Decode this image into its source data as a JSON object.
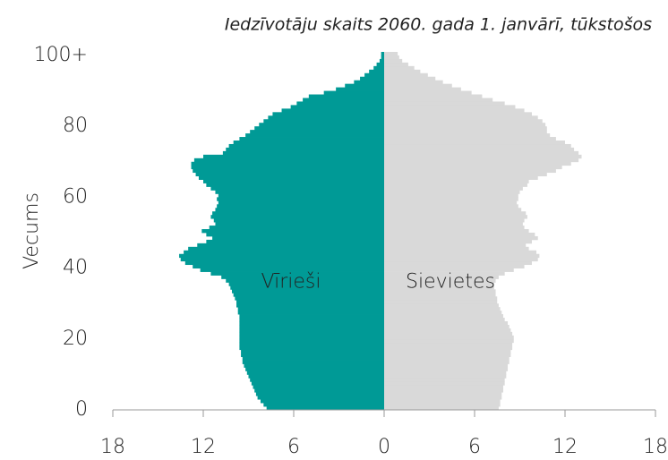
{
  "chart_data": {
    "type": "pyramid",
    "subtitle": "Iedzīvotāju skaits 2060. gada 1. janvārī, tūkstošos",
    "y_label": "Vecums",
    "categories": [
      "0",
      null,
      null,
      null,
      null,
      null,
      null,
      null,
      null,
      null,
      null,
      null,
      null,
      null,
      null,
      null,
      null,
      null,
      null,
      null,
      "20",
      null,
      null,
      null,
      null,
      null,
      null,
      null,
      null,
      null,
      null,
      null,
      null,
      null,
      null,
      null,
      null,
      null,
      null,
      null,
      "40",
      null,
      null,
      null,
      null,
      null,
      null,
      null,
      null,
      null,
      null,
      null,
      null,
      null,
      null,
      null,
      null,
      null,
      null,
      null,
      "60",
      null,
      null,
      null,
      null,
      null,
      null,
      null,
      null,
      null,
      null,
      null,
      null,
      null,
      null,
      null,
      null,
      null,
      null,
      null,
      "80",
      null,
      null,
      null,
      null,
      null,
      null,
      null,
      null,
      null,
      null,
      null,
      null,
      null,
      null,
      null,
      null,
      null,
      null,
      null,
      "100+"
    ],
    "series": [
      {
        "name": "Vīrieši",
        "color": "#009a96",
        "side": "left",
        "values": [
          7.8,
          8.0,
          8.2,
          8.4,
          8.5,
          8.6,
          8.7,
          8.8,
          8.9,
          9.0,
          9.1,
          9.2,
          9.3,
          9.4,
          9.4,
          9.5,
          9.5,
          9.6,
          9.6,
          9.6,
          9.6,
          9.6,
          9.6,
          9.6,
          9.6,
          9.6,
          9.6,
          9.7,
          9.7,
          9.8,
          9.8,
          9.9,
          10.0,
          10.1,
          10.2,
          10.3,
          10.5,
          10.8,
          11.5,
          12.2,
          12.7,
          13.2,
          13.5,
          13.6,
          13.3,
          13.0,
          12.4,
          11.8,
          11.4,
          11.8,
          12.1,
          11.6,
          11.2,
          11.3,
          11.5,
          11.4,
          11.2,
          11.1,
          11.0,
          11.1,
          11.0,
          11.2,
          11.5,
          11.8,
          12.0,
          12.3,
          12.5,
          12.7,
          12.8,
          12.8,
          12.6,
          12.0,
          10.7,
          10.5,
          10.3,
          10.0,
          9.6,
          9.2,
          8.9,
          8.6,
          8.3,
          8.0,
          7.7,
          7.4,
          6.8,
          6.2,
          5.8,
          5.4,
          5.0,
          4.0,
          3.2,
          2.6,
          2.0,
          1.6,
          1.3,
          1.0,
          0.7,
          0.5,
          0.3,
          0.2,
          0.2
        ]
      },
      {
        "name": "Sievietes",
        "color": "#d9d9d9",
        "side": "right",
        "values": [
          7.6,
          7.7,
          7.7,
          7.8,
          7.8,
          7.9,
          7.9,
          8.0,
          8.0,
          8.1,
          8.1,
          8.2,
          8.2,
          8.3,
          8.3,
          8.4,
          8.4,
          8.5,
          8.5,
          8.6,
          8.6,
          8.5,
          8.4,
          8.3,
          8.2,
          8.0,
          7.9,
          7.8,
          7.7,
          7.6,
          7.5,
          7.5,
          7.4,
          7.4,
          7.3,
          7.3,
          7.4,
          7.6,
          8.0,
          8.6,
          9.3,
          9.8,
          10.2,
          10.3,
          10.1,
          9.6,
          9.4,
          9.8,
          10.2,
          10.0,
          9.6,
          9.3,
          9.2,
          9.3,
          9.5,
          9.4,
          9.1,
          8.9,
          8.8,
          8.9,
          8.9,
          9.0,
          9.2,
          9.5,
          9.6,
          10.2,
          10.8,
          11.4,
          11.8,
          12.4,
          12.9,
          13.1,
          12.9,
          12.6,
          12.4,
          12.0,
          11.4,
          11.0,
          10.8,
          10.8,
          10.7,
          10.5,
          10.2,
          9.8,
          9.3,
          8.7,
          8.0,
          7.2,
          6.5,
          5.8,
          5.1,
          4.5,
          3.9,
          3.4,
          2.9,
          2.4,
          2.0,
          1.6,
          1.2,
          1.0,
          0.9
        ]
      }
    ],
    "xlim": [
      -18,
      18
    ],
    "xticks": [
      {
        "value": -18,
        "label": "18"
      },
      {
        "value": -12,
        "label": "12"
      },
      {
        "value": -6,
        "label": "6"
      },
      0,
      6,
      12,
      18
    ]
  }
}
